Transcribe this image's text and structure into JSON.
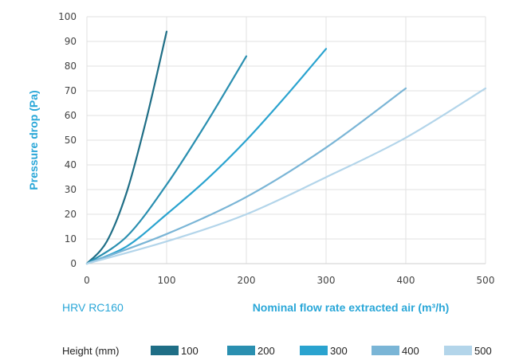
{
  "chart_data": {
    "type": "line",
    "title": "",
    "subtitle": "HRV RC160",
    "xlabel": "Nominal flow rate extracted air (m³/h)",
    "ylabel": "Pressure drop (Pa)",
    "xlim": [
      0,
      500
    ],
    "ylim": [
      0,
      100
    ],
    "xticks": [
      0,
      100,
      200,
      300,
      400,
      500
    ],
    "yticks": [
      0,
      10,
      20,
      30,
      40,
      50,
      60,
      70,
      80,
      90,
      100
    ],
    "grid": true,
    "legend_title": "Height (mm)",
    "legend_position": "bottom",
    "series": [
      {
        "name": "100",
        "color": "#1f6e86",
        "x": [
          0,
          25,
          50,
          75,
          100
        ],
        "y": [
          0,
          9,
          29,
          59,
          94
        ]
      },
      {
        "name": "200",
        "color": "#2a8fb0",
        "x": [
          0,
          50,
          100,
          150,
          200
        ],
        "y": [
          0,
          11,
          32,
          57,
          84
        ]
      },
      {
        "name": "300",
        "color": "#2aa3cf",
        "x": [
          0,
          50,
          100,
          150,
          200,
          250,
          300
        ],
        "y": [
          0,
          7,
          20,
          34,
          50,
          68,
          87
        ]
      },
      {
        "name": "400",
        "color": "#7ab5d6",
        "x": [
          0,
          100,
          200,
          300,
          400
        ],
        "y": [
          0,
          12,
          27,
          47,
          71
        ]
      },
      {
        "name": "500",
        "color": "#b3d5ea",
        "x": [
          0,
          100,
          200,
          300,
          400,
          500
        ],
        "y": [
          0,
          9,
          20,
          35,
          51,
          71
        ]
      }
    ]
  }
}
